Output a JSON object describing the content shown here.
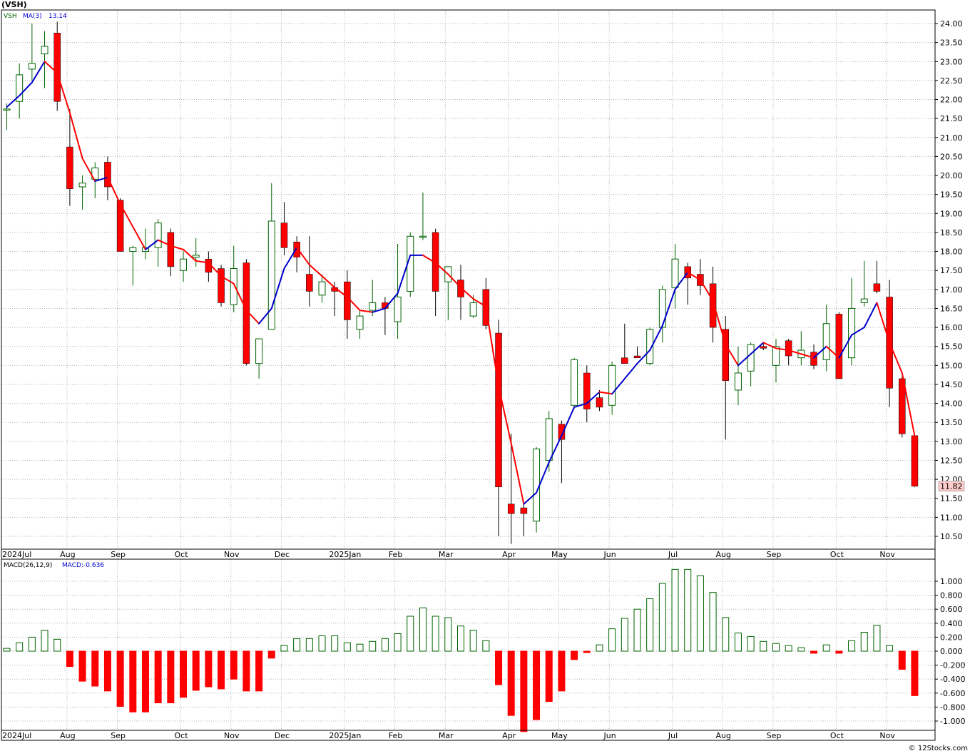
{
  "symbol_title": "(VSH)",
  "watermark": "© 12Stocks.com",
  "colors": {
    "up_candle": "#006400",
    "down_candle": "#ff0000",
    "ma_up": "#0000cc",
    "ma_down": "#ff0000",
    "macd_up": "#006400",
    "macd_down": "#ff0000",
    "grid": "#b4b4b4",
    "last_price_bg": "#ffcccc"
  },
  "chart_data": [
    {
      "type": "candlestick",
      "name": "price",
      "legend": {
        "symbol": "VSH",
        "ma_label": "MA(3)",
        "ma_value": "13.14"
      },
      "last_price_label": "11.82",
      "y_range": [
        10.2,
        24.4
      ],
      "y_ticks": [
        "24.00",
        "23.50",
        "23.00",
        "22.50",
        "22.00",
        "21.50",
        "21.00",
        "20.50",
        "20.00",
        "19.50",
        "19.00",
        "18.50",
        "18.00",
        "17.50",
        "17.00",
        "16.50",
        "16.00",
        "15.50",
        "15.00",
        "14.50",
        "14.00",
        "13.50",
        "13.00",
        "12.50",
        "12.00",
        "11.50",
        "11.00",
        "10.50"
      ],
      "x_labels": [
        {
          "text": "2024Jul",
          "index": 0
        },
        {
          "text": "Aug",
          "index": 5
        },
        {
          "text": "Sep",
          "index": 9
        },
        {
          "text": "Oct",
          "index": 14
        },
        {
          "text": "Nov",
          "index": 18
        },
        {
          "text": "Dec",
          "index": 22
        },
        {
          "text": "2025Jan",
          "index": 27
        },
        {
          "text": "Feb",
          "index": 31
        },
        {
          "text": "Mar",
          "index": 35
        },
        {
          "text": "Apr",
          "index": 40
        },
        {
          "text": "May",
          "index": 44
        },
        {
          "text": "Jun",
          "index": 48
        },
        {
          "text": "Jul",
          "index": 53
        },
        {
          "text": "Aug",
          "index": 57
        },
        {
          "text": "Sep",
          "index": 61
        },
        {
          "text": "Oct",
          "index": 66
        },
        {
          "text": "Nov",
          "index": 70
        }
      ],
      "candles": [
        {
          "o": 21.75,
          "h": 21.9,
          "l": 21.2,
          "c": 21.75
        },
        {
          "o": 21.95,
          "h": 22.95,
          "l": 21.5,
          "c": 22.65
        },
        {
          "o": 22.8,
          "h": 24.0,
          "l": 22.5,
          "c": 22.95
        },
        {
          "o": 23.2,
          "h": 23.8,
          "l": 22.3,
          "c": 23.4
        },
        {
          "o": 23.75,
          "h": 24.05,
          "l": 21.7,
          "c": 21.95
        },
        {
          "o": 20.75,
          "h": 21.75,
          "l": 19.2,
          "c": 19.65
        },
        {
          "o": 19.7,
          "h": 20.0,
          "l": 19.1,
          "c": 19.8
        },
        {
          "o": 19.9,
          "h": 20.35,
          "l": 19.4,
          "c": 20.2
        },
        {
          "o": 20.35,
          "h": 20.5,
          "l": 19.35,
          "c": 19.7
        },
        {
          "o": 19.35,
          "h": 19.4,
          "l": 18.0,
          "c": 18.0
        },
        {
          "o": 18.0,
          "h": 18.15,
          "l": 17.1,
          "c": 18.1
        },
        {
          "o": 18.0,
          "h": 18.6,
          "l": 17.8,
          "c": 18.1
        },
        {
          "o": 18.1,
          "h": 18.85,
          "l": 17.6,
          "c": 18.75
        },
        {
          "o": 18.5,
          "h": 18.6,
          "l": 17.35,
          "c": 17.6
        },
        {
          "o": 17.5,
          "h": 18.0,
          "l": 17.2,
          "c": 17.8
        },
        {
          "o": 17.85,
          "h": 18.35,
          "l": 17.6,
          "c": 17.9
        },
        {
          "o": 17.8,
          "h": 18.0,
          "l": 17.2,
          "c": 17.45
        },
        {
          "o": 17.55,
          "h": 17.65,
          "l": 16.55,
          "c": 16.65
        },
        {
          "o": 16.6,
          "h": 18.15,
          "l": 16.4,
          "c": 17.55
        },
        {
          "o": 17.7,
          "h": 17.8,
          "l": 15.0,
          "c": 15.05
        },
        {
          "o": 15.05,
          "h": 15.7,
          "l": 14.65,
          "c": 15.7
        },
        {
          "o": 15.95,
          "h": 19.8,
          "l": 15.95,
          "c": 18.8
        },
        {
          "o": 18.75,
          "h": 19.3,
          "l": 17.9,
          "c": 18.1
        },
        {
          "o": 18.25,
          "h": 18.4,
          "l": 17.45,
          "c": 17.85
        },
        {
          "o": 17.4,
          "h": 18.4,
          "l": 16.55,
          "c": 16.95
        },
        {
          "o": 16.85,
          "h": 17.4,
          "l": 16.65,
          "c": 17.2
        },
        {
          "o": 17.05,
          "h": 17.2,
          "l": 16.3,
          "c": 16.95
        },
        {
          "o": 17.2,
          "h": 17.5,
          "l": 15.7,
          "c": 16.2
        },
        {
          "o": 15.95,
          "h": 16.45,
          "l": 15.7,
          "c": 16.3
        },
        {
          "o": 16.45,
          "h": 17.25,
          "l": 16.3,
          "c": 16.65
        },
        {
          "o": 16.65,
          "h": 16.8,
          "l": 15.8,
          "c": 16.5
        },
        {
          "o": 16.15,
          "h": 18.2,
          "l": 15.7,
          "c": 16.8
        },
        {
          "o": 16.95,
          "h": 18.5,
          "l": 16.8,
          "c": 18.4
        },
        {
          "o": 18.4,
          "h": 19.55,
          "l": 18.3,
          "c": 18.4
        },
        {
          "o": 18.5,
          "h": 18.6,
          "l": 16.3,
          "c": 16.95
        },
        {
          "o": 17.2,
          "h": 17.6,
          "l": 16.2,
          "c": 17.6
        },
        {
          "o": 17.25,
          "h": 17.65,
          "l": 16.2,
          "c": 16.8
        },
        {
          "o": 16.3,
          "h": 16.85,
          "l": 16.25,
          "c": 16.65
        },
        {
          "o": 17.0,
          "h": 17.3,
          "l": 15.95,
          "c": 16.05
        },
        {
          "o": 15.85,
          "h": 16.2,
          "l": 10.5,
          "c": 11.8
        },
        {
          "o": 11.35,
          "h": 13.2,
          "l": 10.3,
          "c": 11.1
        },
        {
          "o": 11.25,
          "h": 11.35,
          "l": 10.5,
          "c": 11.1
        },
        {
          "o": 10.9,
          "h": 12.85,
          "l": 10.6,
          "c": 12.8
        },
        {
          "o": 12.5,
          "h": 13.8,
          "l": 12.2,
          "c": 13.6
        },
        {
          "o": 13.45,
          "h": 13.55,
          "l": 11.9,
          "c": 13.05
        },
        {
          "o": 13.95,
          "h": 15.2,
          "l": 13.85,
          "c": 15.15
        },
        {
          "o": 14.8,
          "h": 15.0,
          "l": 13.5,
          "c": 13.85
        },
        {
          "o": 14.15,
          "h": 14.35,
          "l": 13.8,
          "c": 13.9
        },
        {
          "o": 13.95,
          "h": 15.1,
          "l": 13.7,
          "c": 15.0
        },
        {
          "o": 15.2,
          "h": 16.1,
          "l": 15.05,
          "c": 15.05
        },
        {
          "o": 15.25,
          "h": 15.5,
          "l": 15.2,
          "c": 15.2
        },
        {
          "o": 15.05,
          "h": 16.0,
          "l": 15.0,
          "c": 15.95
        },
        {
          "o": 16.0,
          "h": 17.1,
          "l": 15.6,
          "c": 17.0
        },
        {
          "o": 17.05,
          "h": 18.2,
          "l": 16.5,
          "c": 17.8
        },
        {
          "o": 17.6,
          "h": 17.7,
          "l": 16.6,
          "c": 17.3
        },
        {
          "o": 17.4,
          "h": 17.8,
          "l": 16.85,
          "c": 17.1
        },
        {
          "o": 17.15,
          "h": 17.6,
          "l": 15.6,
          "c": 16.0
        },
        {
          "o": 15.95,
          "h": 16.3,
          "l": 13.05,
          "c": 14.6
        },
        {
          "o": 14.35,
          "h": 15.5,
          "l": 13.95,
          "c": 14.8
        },
        {
          "o": 14.85,
          "h": 15.6,
          "l": 14.45,
          "c": 15.55
        },
        {
          "o": 15.5,
          "h": 15.6,
          "l": 15.4,
          "c": 15.45
        },
        {
          "o": 15.0,
          "h": 15.7,
          "l": 14.55,
          "c": 15.5
        },
        {
          "o": 15.65,
          "h": 15.7,
          "l": 15.0,
          "c": 15.25
        },
        {
          "o": 15.2,
          "h": 15.9,
          "l": 15.0,
          "c": 15.4
        },
        {
          "o": 15.35,
          "h": 15.55,
          "l": 14.9,
          "c": 15.0
        },
        {
          "o": 15.15,
          "h": 16.6,
          "l": 14.85,
          "c": 16.1
        },
        {
          "o": 16.35,
          "h": 16.4,
          "l": 14.65,
          "c": 14.65
        },
        {
          "o": 15.2,
          "h": 17.3,
          "l": 15.0,
          "c": 16.5
        },
        {
          "o": 16.65,
          "h": 17.75,
          "l": 16.55,
          "c": 16.75
        },
        {
          "o": 17.15,
          "h": 17.75,
          "l": 16.9,
          "c": 16.95
        },
        {
          "o": 16.8,
          "h": 17.25,
          "l": 13.9,
          "c": 14.4
        },
        {
          "o": 14.65,
          "h": 14.7,
          "l": 13.1,
          "c": 13.2
        },
        {
          "o": 13.15,
          "h": 13.15,
          "l": 11.8,
          "c": 11.82
        }
      ],
      "ma3": [
        21.8,
        22.1,
        22.45,
        23.0,
        22.7,
        21.65,
        20.45,
        19.85,
        19.95,
        19.25,
        18.65,
        18.05,
        18.3,
        18.15,
        18.05,
        17.75,
        17.7,
        17.35,
        17.15,
        16.45,
        16.1,
        16.5,
        17.55,
        18.1,
        17.65,
        17.35,
        17.05,
        16.8,
        16.45,
        16.4,
        16.5,
        16.9,
        17.9,
        17.9,
        17.7,
        17.4,
        17.05,
        16.75,
        16.55,
        14.45,
        12.95,
        11.35,
        11.65,
        12.45,
        13.15,
        13.9,
        14.0,
        14.3,
        14.25,
        14.65,
        15.05,
        15.4,
        16.05,
        17.0,
        17.45,
        17.25,
        16.7,
        15.55,
        15.0,
        15.3,
        15.6,
        15.45,
        15.4,
        15.3,
        15.2,
        15.5,
        15.2,
        15.8,
        16.0,
        16.65,
        15.6,
        14.8,
        13.14
      ]
    },
    {
      "type": "bar",
      "name": "macd",
      "legend": {
        "label": "MACD(26,12,9)",
        "value_label": "MACD:-0.636"
      },
      "y_range": [
        -1.15,
        1.22
      ],
      "y_ticks": [
        "1.000",
        "0.800",
        "0.600",
        "0.400",
        "0.200",
        "0.000",
        "-0.200",
        "-0.400",
        "-0.600",
        "-0.800",
        "-1.000"
      ],
      "values": [
        0.04,
        0.12,
        0.2,
        0.3,
        0.17,
        -0.22,
        -0.43,
        -0.5,
        -0.57,
        -0.79,
        -0.87,
        -0.87,
        -0.74,
        -0.74,
        -0.66,
        -0.56,
        -0.51,
        -0.54,
        -0.4,
        -0.57,
        -0.57,
        -0.1,
        0.08,
        0.18,
        0.18,
        0.22,
        0.22,
        0.12,
        0.1,
        0.14,
        0.18,
        0.25,
        0.5,
        0.62,
        0.5,
        0.48,
        0.36,
        0.3,
        0.15,
        -0.48,
        -0.92,
        -1.15,
        -0.98,
        -0.72,
        -0.57,
        -0.12,
        -0.02,
        0.09,
        0.32,
        0.47,
        0.6,
        0.75,
        0.97,
        1.17,
        1.17,
        1.08,
        0.84,
        0.48,
        0.26,
        0.21,
        0.14,
        0.11,
        0.08,
        0.05,
        -0.03,
        0.09,
        -0.03,
        0.15,
        0.27,
        0.37,
        0.08,
        -0.26,
        -0.636
      ]
    }
  ]
}
